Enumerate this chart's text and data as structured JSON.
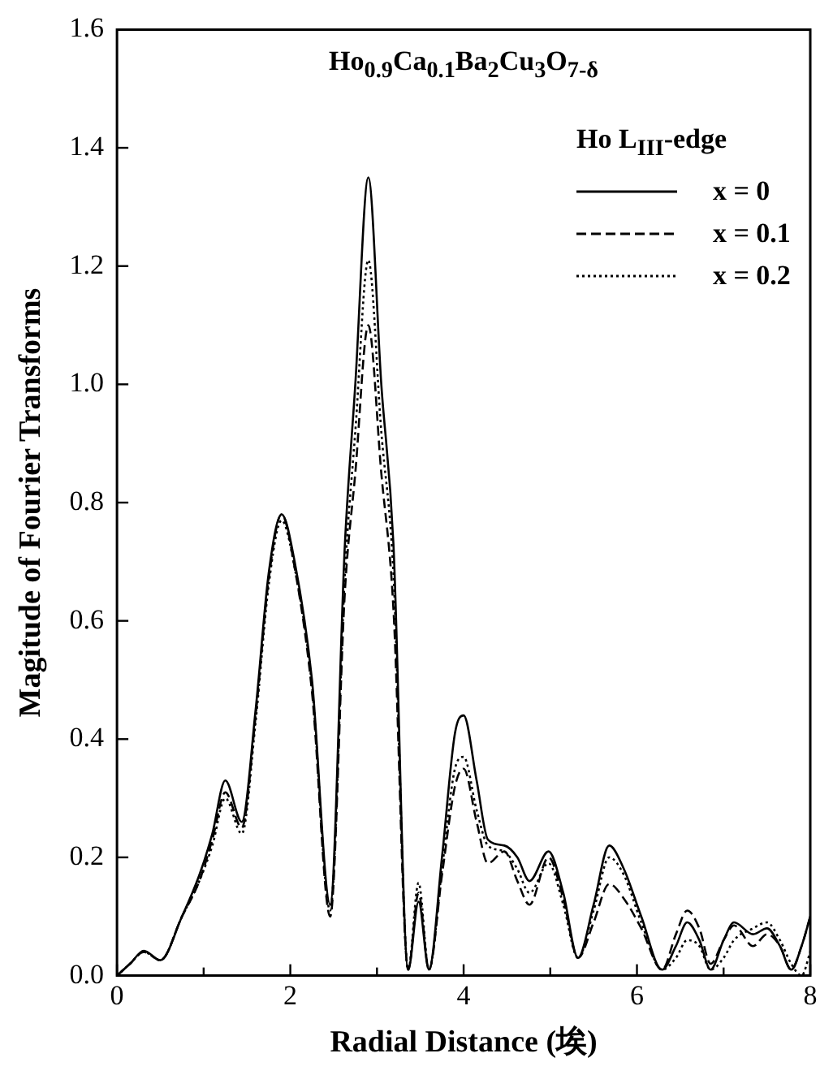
{
  "chart_data": {
    "type": "line",
    "title": "Ho$_{0.9}$Ca$_{0.1}$Ba$_{2}$Cu$_{3}$O$_{7-δ}$",
    "xlabel": "Radial Distance (埃)",
    "ylabel": "Magitude of Fourier Transforms",
    "legend_title": "Ho L$_{III}$-edge",
    "legend": "top right",
    "marker": "none",
    "grid": false,
    "x": [
      0,
      0.15,
      0.31,
      0.5,
      0.75,
      0.95,
      1.1,
      1.25,
      1.44,
      1.6,
      1.75,
      1.9,
      2.05,
      2.25,
      2.46,
      2.63,
      2.75,
      2.9,
      3.05,
      3.19,
      3.36,
      3.48,
      3.6,
      3.75,
      3.9,
      4.0,
      4.15,
      4.28,
      4.47,
      4.62,
      4.76,
      4.98,
      5.15,
      5.32,
      5.5,
      5.68,
      5.85,
      6.05,
      6.29,
      6.45,
      6.58,
      6.72,
      6.85,
      7.0,
      7.12,
      7.34,
      7.5,
      7.65,
      7.78,
      7.9,
      8.0
    ],
    "xlim": [
      0,
      8
    ],
    "xticks": [
      0,
      {
        "value": 1,
        "label": null
      },
      2,
      {
        "value": 3,
        "label": null
      },
      4,
      {
        "value": 5,
        "label": null
      },
      6,
      {
        "value": 7,
        "label": null
      },
      8
    ],
    "ylim": [
      0,
      1.6
    ],
    "yticks": [
      {
        "value": 0,
        "label": "0.0"
      },
      {
        "value": 0.2,
        "label": "0.2"
      },
      {
        "value": 0.4,
        "label": "0.4"
      },
      {
        "value": 0.6,
        "label": "0.6"
      },
      {
        "value": 0.8,
        "label": "0.8"
      },
      {
        "value": 1,
        "label": "1.0"
      },
      {
        "value": 1.2,
        "label": "1.2"
      },
      {
        "value": 1.4,
        "label": "1.4"
      },
      {
        "value": 1.6,
        "label": "1.6"
      }
    ],
    "series": [
      {
        "name": "x = 0",
        "color": "#000000",
        "line_style": "solid",
        "values": [
          0,
          0.02,
          0.042,
          0.026,
          0.1,
          0.17,
          0.24,
          0.33,
          0.26,
          0.45,
          0.68,
          0.78,
          0.7,
          0.5,
          0.12,
          0.73,
          1.0,
          1.35,
          1.0,
          0.73,
          0.01,
          0.125,
          0.01,
          0.2,
          0.41,
          0.44,
          0.33,
          0.23,
          0.22,
          0.2,
          0.16,
          0.21,
          0.14,
          0.03,
          0.12,
          0.22,
          0.18,
          0.1,
          0.01,
          0.05,
          0.09,
          0.06,
          0.01,
          0.06,
          0.09,
          0.07,
          0.08,
          0.05,
          0.01,
          0.05,
          0.1
        ]
      },
      {
        "name": "x = 0.1",
        "color": "#000000",
        "line_style": "dashed",
        "values": [
          0,
          0.02,
          0.04,
          0.026,
          0.1,
          0.16,
          0.23,
          0.31,
          0.25,
          0.44,
          0.67,
          0.78,
          0.69,
          0.48,
          0.1,
          0.65,
          0.85,
          1.1,
          0.85,
          0.62,
          0.01,
          0.14,
          0.01,
          0.17,
          0.32,
          0.35,
          0.26,
          0.19,
          0.21,
          0.16,
          0.12,
          0.2,
          0.13,
          0.03,
          0.09,
          0.155,
          0.13,
          0.08,
          0.01,
          0.07,
          0.11,
          0.08,
          0.02,
          0.06,
          0.085,
          0.05,
          0.07,
          0.05,
          0.01,
          0.05,
          0.1
        ]
      },
      {
        "name": "x = 0.2",
        "color": "#000000",
        "line_style": "dotted",
        "values": [
          0,
          0.02,
          0.04,
          0.026,
          0.1,
          0.16,
          0.22,
          0.3,
          0.24,
          0.43,
          0.66,
          0.77,
          0.69,
          0.49,
          0.11,
          0.68,
          0.92,
          1.21,
          0.92,
          0.68,
          0.01,
          0.157,
          0.01,
          0.18,
          0.35,
          0.37,
          0.28,
          0.22,
          0.21,
          0.18,
          0.14,
          0.19,
          0.12,
          0.03,
          0.11,
          0.2,
          0.17,
          0.09,
          0.01,
          0.03,
          0.06,
          0.05,
          0.01,
          0.03,
          0.06,
          0.08,
          0.09,
          0.06,
          0.02,
          0,
          0.04
        ]
      }
    ]
  }
}
